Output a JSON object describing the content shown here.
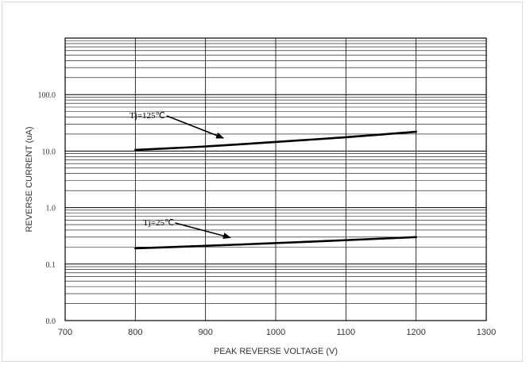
{
  "chart_data": {
    "type": "line",
    "xlabel": "PEAK REVERSE VOLTAGE (V)",
    "ylabel": "REVERSE CURRENT (uA)",
    "xlim": [
      700,
      1300
    ],
    "x_ticks": [
      700,
      800,
      900,
      1000,
      1100,
      1200,
      1300
    ],
    "x_tick_labels": [
      "700",
      "800",
      "900",
      "1000",
      "1100",
      "1200",
      "1300"
    ],
    "y_scale": "log",
    "y_tick_values": [
      0.01,
      0.1,
      1,
      10,
      100
    ],
    "y_tick_labels": [
      "0.0",
      "0.1",
      "1.0",
      "10.0",
      "100.0"
    ],
    "ylim_decades": [
      0.01,
      1000
    ],
    "grid": true,
    "series": [
      {
        "name": "Tj=125℃",
        "x": [
          800,
          900,
          1000,
          1100,
          1200
        ],
        "y": [
          10.5,
          12.0,
          14.5,
          17.5,
          22.0
        ]
      },
      {
        "name": "Tj=25℃",
        "x": [
          800,
          900,
          1000,
          1100,
          1200
        ],
        "y": [
          0.19,
          0.21,
          0.235,
          0.265,
          0.3
        ]
      }
    ],
    "annotations": [
      {
        "text": "Tj=125℃",
        "series": 0,
        "points_to_x": 930
      },
      {
        "text": "Tj=25℃",
        "series": 1,
        "points_to_x": 940
      }
    ],
    "line_color": "#000000"
  }
}
